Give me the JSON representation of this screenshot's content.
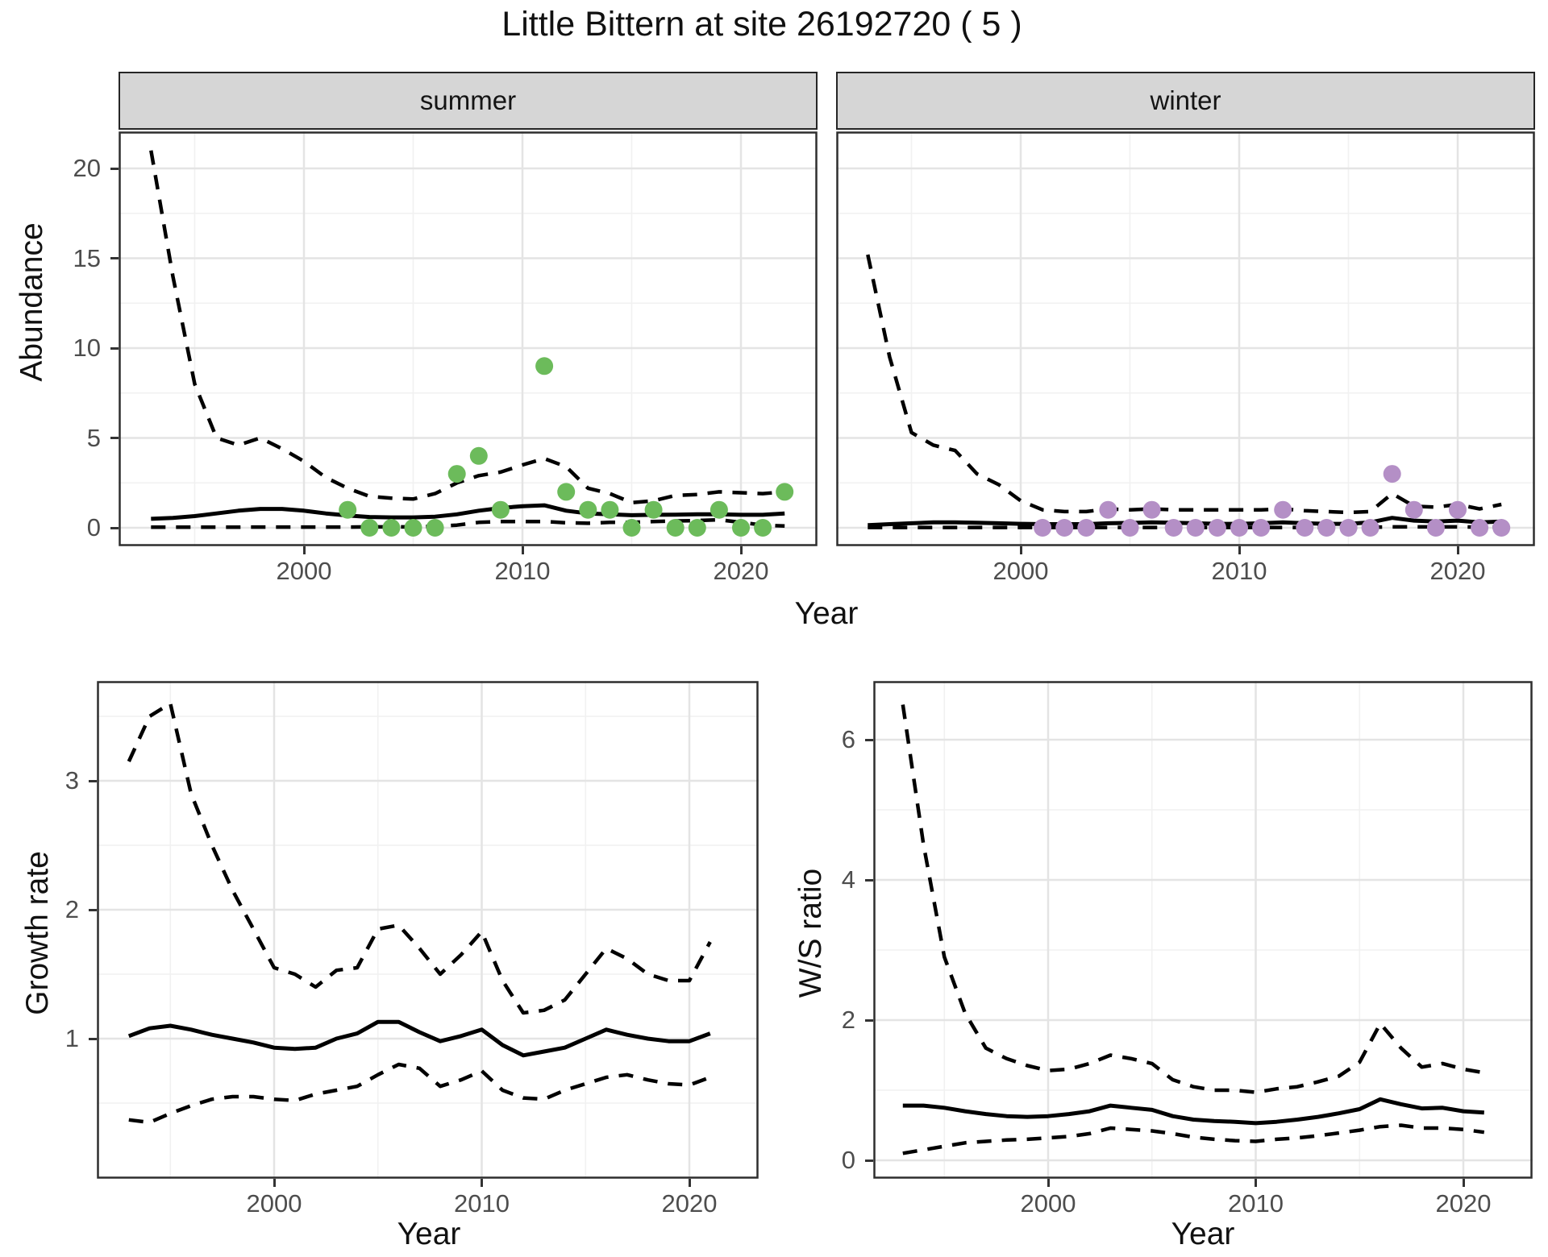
{
  "title": "Little Bittern at site 26192720 ( 5 )",
  "facets": {
    "summer": "summer",
    "winter": "winter"
  },
  "axes": {
    "abundance": "Abundance",
    "year_top": "Year",
    "growth": "Growth rate",
    "ws": "W/S ratio",
    "year_bottom_left": "Year",
    "year_bottom_right": "Year"
  },
  "colors": {
    "summer_points": "#6cbb5b",
    "winter_points": "#b48fc6",
    "line": "#000000",
    "strip_bg": "#d6d6d6",
    "grid_major": "#e4e4e4",
    "grid_minor": "#f1f1f1",
    "tick_text": "#4d4d4d",
    "panel_border": "#2e2e2e"
  },
  "chart_data": [
    {
      "id": "abundance_summer",
      "type": "line",
      "subtype": "median-with-dashed-CI-and-points",
      "facet_label": "summer",
      "xlabel": "Year",
      "ylabel": "Abundance",
      "xlim": [
        1991.5,
        2023.5
      ],
      "ylim": [
        -1.0,
        22.1
      ],
      "xticks": [
        2000,
        2010,
        2020
      ],
      "xticks_minor": [
        1995,
        2005,
        2015
      ],
      "yticks": [
        0,
        5,
        10,
        15,
        20
      ],
      "yticks_minor": [
        2.5,
        7.5,
        12.5,
        17.5
      ],
      "grid": true,
      "years": [
        1993,
        1994,
        1995,
        1996,
        1997,
        1998,
        1999,
        2000,
        2001,
        2002,
        2003,
        2004,
        2005,
        2006,
        2007,
        2008,
        2009,
        2010,
        2011,
        2012,
        2013,
        2014,
        2015,
        2016,
        2017,
        2018,
        2019,
        2020,
        2021,
        2022
      ],
      "ci_upper": [
        21,
        14,
        8,
        5,
        4.6,
        5,
        4.4,
        3.7,
        2.8,
        2.2,
        1.75,
        1.65,
        1.6,
        1.9,
        2.5,
        2.9,
        3.1,
        3.5,
        3.85,
        3.4,
        2.2,
        1.9,
        1.4,
        1.5,
        1.8,
        1.85,
        2.0,
        1.95,
        1.9,
        2.0
      ],
      "median": [
        0.5,
        0.55,
        0.65,
        0.8,
        0.95,
        1.05,
        1.05,
        0.95,
        0.8,
        0.68,
        0.6,
        0.58,
        0.58,
        0.62,
        0.75,
        0.95,
        1.1,
        1.2,
        1.25,
        0.95,
        0.8,
        0.75,
        0.7,
        0.72,
        0.73,
        0.75,
        0.75,
        0.72,
        0.72,
        0.8
      ],
      "ci_lower": [
        0.03,
        0.03,
        0.03,
        0.03,
        0.03,
        0.04,
        0.04,
        0.04,
        0.04,
        0.04,
        0.05,
        0.05,
        0.05,
        0.08,
        0.15,
        0.3,
        0.35,
        0.35,
        0.35,
        0.28,
        0.25,
        0.3,
        0.3,
        0.35,
        0.38,
        0.4,
        0.45,
        0.3,
        0.15,
        0.1
      ],
      "points_years": [
        2002,
        2003,
        2004,
        2005,
        2006,
        2007,
        2008,
        2009,
        2011,
        2012,
        2013,
        2014,
        2015,
        2016,
        2017,
        2018,
        2019,
        2020,
        2021,
        2022
      ],
      "points_values": [
        1,
        0,
        0,
        0,
        0,
        3,
        4,
        1,
        9,
        2,
        1,
        1,
        0,
        1,
        0,
        0,
        1,
        0,
        0,
        2
      ],
      "point_color": "#6cbb5b"
    },
    {
      "id": "abundance_winter",
      "type": "line",
      "subtype": "median-with-dashed-CI-and-points",
      "facet_label": "winter",
      "xlabel": "Year",
      "ylabel": "Abundance",
      "xlim": [
        1991.5,
        2023.5
      ],
      "ylim": [
        -1.0,
        22.1
      ],
      "xticks": [
        2000,
        2010,
        2020
      ],
      "xticks_minor": [
        1995,
        2005,
        2015
      ],
      "yticks": [
        0,
        5,
        10,
        15,
        20
      ],
      "yticks_minor": [
        2.5,
        7.5,
        12.5,
        17.5
      ],
      "grid": true,
      "years": [
        1993,
        1994,
        1995,
        1996,
        1997,
        1998,
        1999,
        2000,
        2001,
        2002,
        2003,
        2004,
        2005,
        2006,
        2007,
        2008,
        2009,
        2010,
        2011,
        2012,
        2013,
        2014,
        2015,
        2016,
        2017,
        2018,
        2019,
        2020,
        2021,
        2022
      ],
      "ci_upper": [
        15.2,
        9.5,
        5.3,
        4.6,
        4.3,
        3.0,
        2.4,
        1.5,
        1.0,
        0.9,
        0.9,
        1.05,
        1.0,
        1.05,
        1.0,
        1.0,
        1.0,
        1.0,
        1.0,
        1.05,
        0.95,
        0.9,
        0.85,
        0.9,
        1.9,
        1.2,
        1.15,
        1.3,
        1.05,
        1.3
      ],
      "median": [
        0.15,
        0.2,
        0.25,
        0.3,
        0.3,
        0.28,
        0.25,
        0.22,
        0.2,
        0.2,
        0.2,
        0.25,
        0.27,
        0.3,
        0.28,
        0.25,
        0.22,
        0.22,
        0.25,
        0.3,
        0.25,
        0.22,
        0.22,
        0.3,
        0.55,
        0.4,
        0.35,
        0.4,
        0.3,
        0.35
      ],
      "ci_lower": [
        0.02,
        0.02,
        0.02,
        0.02,
        0.02,
        0.02,
        0.02,
        0.02,
        0.02,
        0.02,
        0.02,
        0.02,
        0.02,
        0.02,
        0.02,
        0.02,
        0.02,
        0.02,
        0.02,
        0.02,
        0.02,
        0.02,
        0.02,
        0.03,
        0.05,
        0.05,
        0.05,
        0.05,
        0.04,
        0.04
      ],
      "points_years": [
        2001,
        2002,
        2003,
        2004,
        2005,
        2006,
        2007,
        2008,
        2009,
        2010,
        2011,
        2012,
        2013,
        2014,
        2015,
        2016,
        2017,
        2018,
        2019,
        2020,
        2021,
        2022
      ],
      "points_values": [
        0,
        0,
        0,
        1,
        0,
        1,
        0,
        0,
        0,
        0,
        0,
        1,
        0,
        0,
        0,
        0,
        3,
        1,
        0,
        1,
        0,
        0
      ],
      "point_color": "#b48fc6"
    },
    {
      "id": "growth_rate",
      "type": "line",
      "subtype": "median-with-dashed-CI",
      "xlabel": "Year",
      "ylabel": "Growth rate",
      "xlim": [
        1991.5,
        2023.4
      ],
      "ylim": [
        0.1,
        3.85
      ],
      "xticks": [
        2000,
        2010,
        2020
      ],
      "xticks_minor": [
        1995,
        2005,
        2015
      ],
      "yticks": [
        1,
        2,
        3
      ],
      "yticks_minor": [
        0.5,
        1.5,
        2.5,
        3.5
      ],
      "grid": true,
      "years": [
        1993,
        1994,
        1995,
        1996,
        1997,
        1998,
        1999,
        2000,
        2001,
        2002,
        2003,
        2004,
        2005,
        2006,
        2007,
        2008,
        2009,
        2010,
        2011,
        2012,
        2013,
        2014,
        2015,
        2016,
        2017,
        2018,
        2019,
        2020,
        2021
      ],
      "ci_upper": [
        3.15,
        3.5,
        3.6,
        2.9,
        2.5,
        2.15,
        1.85,
        1.55,
        1.5,
        1.4,
        1.53,
        1.55,
        1.85,
        1.88,
        1.7,
        1.5,
        1.65,
        1.83,
        1.45,
        1.2,
        1.22,
        1.3,
        1.5,
        1.7,
        1.62,
        1.5,
        1.45,
        1.45,
        1.75
      ],
      "median": [
        1.02,
        1.08,
        1.1,
        1.07,
        1.03,
        1.0,
        0.97,
        0.93,
        0.92,
        0.93,
        1.0,
        1.04,
        1.13,
        1.13,
        1.05,
        0.98,
        1.02,
        1.07,
        0.95,
        0.87,
        0.9,
        0.93,
        1.0,
        1.07,
        1.03,
        1.0,
        0.98,
        0.98,
        1.04
      ],
      "ci_lower": [
        0.37,
        0.35,
        0.42,
        0.48,
        0.53,
        0.55,
        0.55,
        0.53,
        0.52,
        0.57,
        0.6,
        0.63,
        0.72,
        0.8,
        0.77,
        0.63,
        0.68,
        0.75,
        0.6,
        0.54,
        0.53,
        0.6,
        0.65,
        0.7,
        0.72,
        0.68,
        0.65,
        0.64,
        0.7
      ]
    },
    {
      "id": "ws_ratio",
      "type": "line",
      "subtype": "median-with-dashed-CI",
      "xlabel": "Year",
      "ylabel": "W/S ratio",
      "xlim": [
        1991.5,
        2023.4
      ],
      "ylim": [
        -0.25,
        6.85
      ],
      "xticks": [
        2000,
        2010,
        2020
      ],
      "xticks_minor": [
        1995,
        2005,
        2015
      ],
      "yticks": [
        0,
        2,
        4,
        6
      ],
      "yticks_minor": [
        1,
        3,
        5
      ],
      "grid": true,
      "years": [
        1993,
        1994,
        1995,
        1996,
        1997,
        1998,
        1999,
        2000,
        2001,
        2002,
        2003,
        2004,
        2005,
        2006,
        2007,
        2008,
        2009,
        2010,
        2011,
        2012,
        2013,
        2014,
        2015,
        2016,
        2017,
        2018,
        2019,
        2020,
        2021
      ],
      "ci_upper": [
        6.5,
        4.5,
        2.9,
        2.1,
        1.6,
        1.45,
        1.35,
        1.28,
        1.3,
        1.38,
        1.5,
        1.45,
        1.38,
        1.15,
        1.05,
        1.0,
        1.0,
        0.97,
        1.02,
        1.05,
        1.12,
        1.2,
        1.4,
        1.95,
        1.6,
        1.33,
        1.38,
        1.3,
        1.25
      ],
      "median": [
        0.78,
        0.78,
        0.75,
        0.7,
        0.66,
        0.63,
        0.62,
        0.63,
        0.66,
        0.7,
        0.78,
        0.75,
        0.72,
        0.63,
        0.58,
        0.56,
        0.55,
        0.53,
        0.55,
        0.58,
        0.62,
        0.67,
        0.73,
        0.87,
        0.8,
        0.74,
        0.75,
        0.7,
        0.68
      ],
      "ci_lower": [
        0.1,
        0.15,
        0.2,
        0.25,
        0.27,
        0.29,
        0.3,
        0.32,
        0.34,
        0.38,
        0.46,
        0.44,
        0.42,
        0.38,
        0.33,
        0.3,
        0.28,
        0.27,
        0.3,
        0.32,
        0.35,
        0.39,
        0.43,
        0.48,
        0.5,
        0.46,
        0.46,
        0.44,
        0.4
      ]
    }
  ]
}
